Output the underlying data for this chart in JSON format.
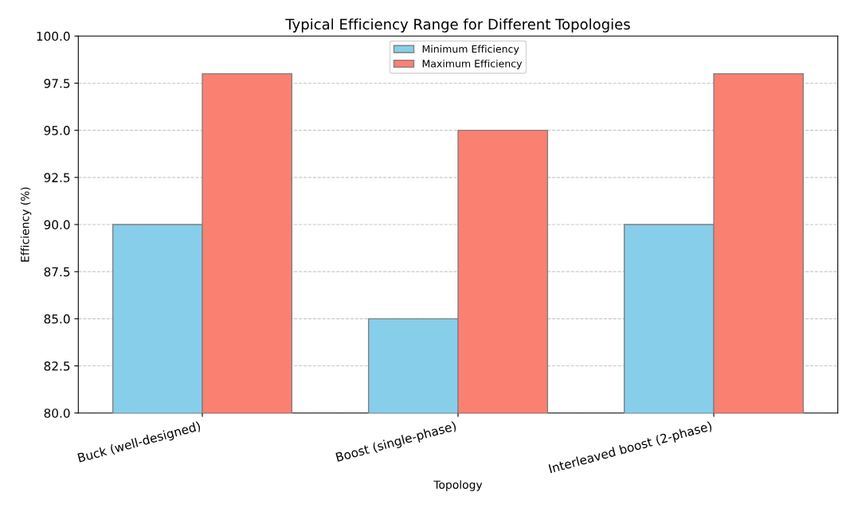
{
  "chart_data": {
    "type": "bar",
    "title": "Typical Efficiency Range for Different Topologies",
    "xlabel": "Topology",
    "ylabel": "Efficiency (%)",
    "categories": [
      "Buck (well-designed)",
      "Boost (single-phase)",
      "Interleaved boost (2-phase)"
    ],
    "series": [
      {
        "name": "Minimum Efficiency",
        "color": "#87ceeb",
        "values": [
          90,
          85,
          90
        ]
      },
      {
        "name": "Maximum Efficiency",
        "color": "#fa8072",
        "values": [
          98,
          95,
          98
        ]
      }
    ],
    "ylim": [
      80,
      100
    ],
    "yticks": [
      {
        "value": 80,
        "label": "80.0"
      },
      {
        "value": 82.5,
        "label": "82.5"
      },
      {
        "value": 85,
        "label": "85.0"
      },
      {
        "value": 87.5,
        "label": "87.5"
      },
      {
        "value": 90,
        "label": "90.0"
      },
      {
        "value": 92.5,
        "label": "92.5"
      },
      {
        "value": 95,
        "label": "95.0"
      },
      {
        "value": 97.5,
        "label": "97.5"
      },
      {
        "value": 100,
        "label": "100.0"
      }
    ],
    "grid": "y",
    "legend": "top"
  }
}
